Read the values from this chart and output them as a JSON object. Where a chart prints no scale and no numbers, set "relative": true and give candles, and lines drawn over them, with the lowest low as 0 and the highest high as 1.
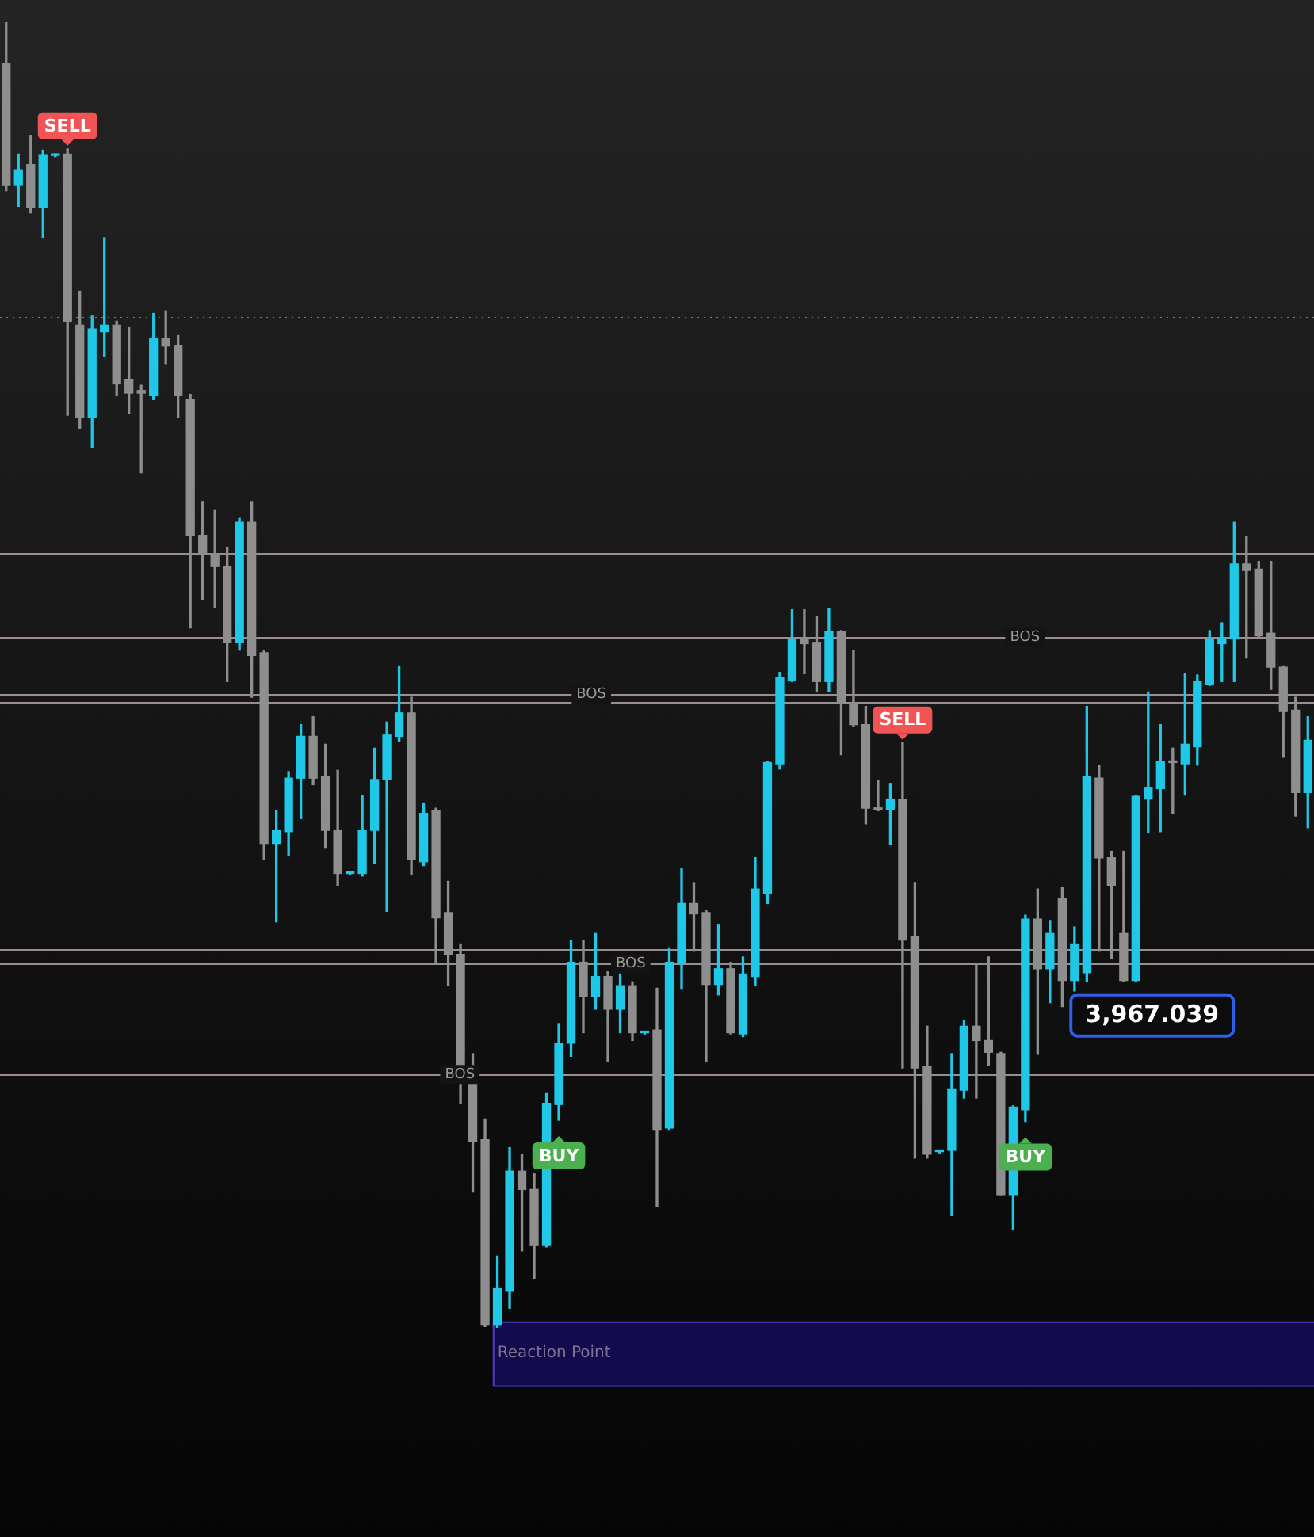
{
  "chart_data": {
    "type": "candlestick",
    "relative": true,
    "categories": [
      null,
      null,
      null,
      null,
      null,
      null,
      null,
      null,
      null,
      null,
      null,
      null,
      null,
      null,
      null,
      null,
      null,
      null,
      null,
      null,
      null,
      null,
      null,
      null,
      null,
      null,
      null,
      null,
      null,
      null,
      null,
      null,
      null,
      null,
      null,
      null,
      null,
      null,
      null,
      null,
      null,
      null,
      null,
      null,
      null,
      null,
      null,
      null,
      null,
      null,
      null,
      null,
      null,
      null,
      null,
      null,
      null,
      null,
      null,
      null,
      null,
      null,
      null,
      null,
      null,
      null,
      null,
      null,
      null,
      null,
      null,
      null,
      null,
      null,
      null,
      null,
      null,
      null,
      null,
      null,
      null,
      null,
      null,
      null,
      null,
      null,
      null,
      null,
      null,
      null,
      null,
      null,
      null,
      null,
      null,
      null,
      null,
      null,
      null,
      null,
      null,
      null,
      null,
      null,
      null,
      null,
      null
    ],
    "ohlc": [
      [
        0.968,
        1,
        0.871,
        0.875
      ],
      [
        0.875,
        0.899,
        0.859,
        0.887
      ],
      [
        0.891,
        0.913,
        0.854,
        0.858
      ],
      [
        0.858,
        0.902,
        0.835,
        0.898
      ],
      [
        0.898,
        0.899,
        0.897,
        0.898
      ],
      [
        0.899,
        0.903,
        0.699,
        0.771
      ],
      [
        0.768,
        0.794,
        0.689,
        0.697
      ],
      [
        0.697,
        0.775,
        0.674,
        0.765
      ],
      [
        0.763,
        0.835,
        0.744,
        0.768
      ],
      [
        0.768,
        0.771,
        0.714,
        0.723
      ],
      [
        0.726,
        0.766,
        0.7,
        0.716
      ],
      [
        0.718,
        0.722,
        0.655,
        0.716
      ],
      [
        0.714,
        0.777,
        0.711,
        0.758
      ],
      [
        0.758,
        0.779,
        0.738,
        0.752
      ],
      [
        0.752,
        0.76,
        0.697,
        0.714
      ],
      [
        0.711,
        0.715,
        0.536,
        0.607
      ],
      [
        0.607,
        0.633,
        0.558,
        0.593
      ],
      [
        0.593,
        0.626,
        0.552,
        0.583
      ],
      [
        0.583,
        0.598,
        0.495,
        0.525
      ],
      [
        0.525,
        0.62,
        0.519,
        0.617
      ],
      [
        0.617,
        0.633,
        0.483,
        0.515
      ],
      [
        0.517,
        0.519,
        0.359,
        0.371
      ],
      [
        0.371,
        0.396,
        0.311,
        0.381
      ],
      [
        0.38,
        0.426,
        0.362,
        0.421
      ],
      [
        0.421,
        0.462,
        0.39,
        0.453
      ],
      [
        0.453,
        0.468,
        0.416,
        0.421
      ],
      [
        0.422,
        0.447,
        0.368,
        0.381
      ],
      [
        0.381,
        0.427,
        0.339,
        0.348
      ],
      [
        0.348,
        0.349,
        0.347,
        0.348
      ],
      [
        0.348,
        0.408,
        0.346,
        0.381
      ],
      [
        0.381,
        0.444,
        0.356,
        0.42
      ],
      [
        0.42,
        0.464,
        0.319,
        0.454
      ],
      [
        0.453,
        0.507,
        0.449,
        0.471
      ],
      [
        0.471,
        0.483,
        0.347,
        0.359
      ],
      [
        0.357,
        0.402,
        0.354,
        0.394
      ],
      [
        0.396,
        0.398,
        0.28,
        0.314
      ],
      [
        0.318,
        0.342,
        0.262,
        0.286
      ],
      [
        0.286,
        0.294,
        0.172,
        0.188
      ],
      [
        0.188,
        0.21,
        0.104,
        0.143
      ],
      [
        0.144,
        0.16,
        0.001,
        0.002
      ],
      [
        0.002,
        0.055,
        0,
        0.03
      ],
      [
        0.028,
        0.138,
        0.015,
        0.12
      ],
      [
        0.12,
        0.133,
        0.059,
        0.106
      ],
      [
        0.106,
        0.118,
        0.038,
        0.063
      ],
      [
        0.063,
        0.18,
        0.062,
        0.172
      ],
      [
        0.171,
        0.233,
        0.159,
        0.218
      ],
      [
        0.218,
        0.297,
        0.208,
        0.28
      ],
      [
        0.28,
        0.297,
        0.226,
        0.254
      ],
      [
        0.254,
        0.302,
        0.244,
        0.269
      ],
      [
        0.269,
        0.273,
        0.204,
        0.244
      ],
      [
        0.244,
        0.271,
        0.226,
        0.262
      ],
      [
        0.262,
        0.265,
        0.22,
        0.226
      ],
      [
        0.226,
        0.227,
        0.225,
        0.226
      ],
      [
        0.228,
        0.26,
        0.093,
        0.152
      ],
      [
        0.153,
        0.291,
        0.152,
        0.28
      ],
      [
        0.279,
        0.352,
        0.26,
        0.325
      ],
      [
        0.325,
        0.341,
        0.289,
        0.317
      ],
      [
        0.318,
        0.32,
        0.204,
        0.263
      ],
      [
        0.263,
        0.309,
        0.255,
        0.275
      ],
      [
        0.275,
        0.28,
        0.225,
        0.226
      ],
      [
        0.225,
        0.284,
        0.223,
        0.271
      ],
      [
        0.269,
        0.36,
        0.262,
        0.336
      ],
      [
        0.333,
        0.434,
        0.325,
        0.433
      ],
      [
        0.432,
        0.502,
        0.428,
        0.498
      ],
      [
        0.496,
        0.55,
        0.495,
        0.527
      ],
      [
        0.528,
        0.55,
        0.501,
        0.524
      ],
      [
        0.525,
        0.545,
        0.487,
        0.495
      ],
      [
        0.495,
        0.551,
        0.487,
        0.533
      ],
      [
        0.533,
        0.534,
        0.439,
        0.478
      ],
      [
        0.478,
        0.519,
        0.461,
        0.462
      ],
      [
        0.462,
        0.476,
        0.386,
        0.398
      ],
      [
        0.398,
        0.419,
        0.396,
        0.397
      ],
      [
        0.397,
        0.417,
        0.37,
        0.405
      ],
      [
        0.405,
        0.448,
        0.199,
        0.297
      ],
      [
        0.3,
        0.341,
        0.13,
        0.199
      ],
      [
        0.2,
        0.231,
        0.13,
        0.133
      ],
      [
        0.135,
        0.136,
        0.134,
        0.135
      ],
      [
        0.136,
        0.21,
        0.086,
        0.183
      ],
      [
        0.182,
        0.235,
        0.176,
        0.231
      ],
      [
        0.231,
        0.278,
        0.176,
        0.22
      ],
      [
        0.22,
        0.284,
        0.201,
        0.211
      ],
      [
        0.21,
        0.211,
        0.102,
        0.102
      ],
      [
        0.102,
        0.17,
        0.075,
        0.169
      ],
      [
        0.167,
        0.316,
        0.158,
        0.313
      ],
      [
        0.313,
        0.336,
        0.21,
        0.275
      ],
      [
        0.275,
        0.312,
        0.249,
        0.302
      ],
      [
        0.329,
        0.337,
        0.246,
        0.266
      ],
      [
        0.266,
        0.307,
        0.258,
        0.294
      ],
      [
        0.272,
        0.476,
        0.265,
        0.422
      ],
      [
        0.421,
        0.431,
        0.289,
        0.36
      ],
      [
        0.36,
        0.365,
        0.283,
        0.339
      ],
      [
        0.302,
        0.365,
        0.265,
        0.266
      ],
      [
        0.266,
        0.408,
        0.265,
        0.407
      ],
      [
        0.405,
        0.487,
        0.379,
        0.414
      ],
      [
        0.413,
        0.462,
        0.38,
        0.434
      ],
      [
        0.434,
        0.444,
        0.394,
        0.433
      ],
      [
        0.432,
        0.501,
        0.408,
        0.447
      ],
      [
        0.445,
        0.5,
        0.431,
        0.495
      ],
      [
        0.493,
        0.534,
        0.492,
        0.527
      ],
      [
        0.524,
        0.54,
        0.495,
        0.528
      ],
      [
        0.528,
        0.617,
        0.495,
        0.585
      ],
      [
        0.585,
        0.606,
        0.513,
        0.58
      ],
      [
        0.581,
        0.587,
        0.529,
        0.53
      ],
      [
        0.532,
        0.587,
        0.489,
        0.506
      ],
      [
        0.506,
        0.507,
        0.437,
        0.472
      ],
      [
        0.473,
        0.483,
        0.392,
        0.41
      ],
      [
        0.41,
        0.468,
        0.383,
        0.45
      ]
    ],
    "ref_lines": [
      {
        "axis": "y",
        "value": 0.774,
        "line_style": "dotted"
      },
      {
        "axis": "y",
        "value": 0.593
      },
      {
        "axis": "y",
        "value": 0.529,
        "label": "BOS"
      },
      {
        "axis": "y",
        "value": 0.485,
        "label": "BOS"
      },
      {
        "axis": "y",
        "value": 0.479
      },
      {
        "axis": "y",
        "value": 0.29
      },
      {
        "axis": "y",
        "value": 0.279,
        "label": "BOS"
      },
      {
        "axis": "y",
        "value": 0.194,
        "label": "BOS"
      }
    ],
    "bands": [
      {
        "axis": "y",
        "from": -0.044,
        "to": 0.005,
        "label": "Reaction Point",
        "color": "#140a4e"
      }
    ],
    "annotations": [
      "3,967.039",
      {
        "text": "SELL",
        "y": 0.903
      },
      {
        "text": "SELL",
        "y": 0.448
      },
      {
        "text": "BUY",
        "y": 0.159
      },
      {
        "text": "BUY",
        "y": 0.158
      }
    ]
  }
}
